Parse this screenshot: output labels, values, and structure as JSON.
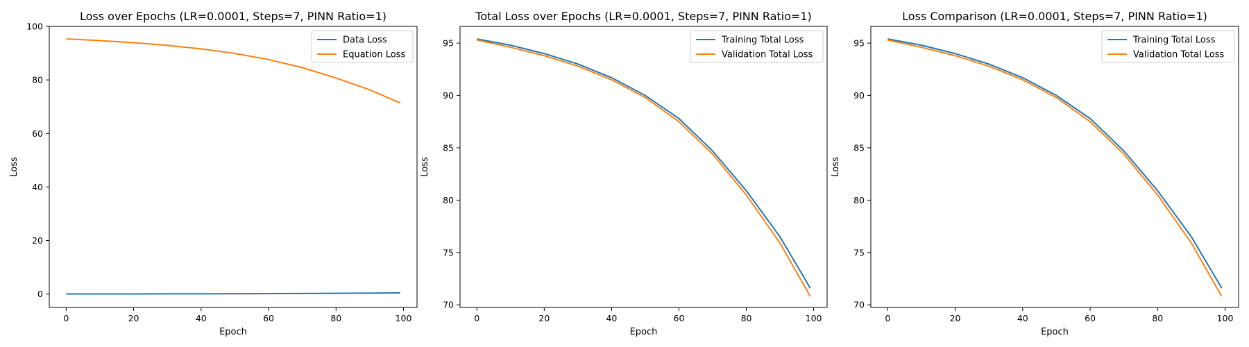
{
  "chart_data": [
    {
      "type": "line",
      "title": "Loss over Epochs (LR=0.0001, Steps=7, PINN Ratio=1)",
      "xlabel": "Epoch",
      "ylabel": "Loss",
      "xlim": [
        -5,
        104
      ],
      "ylim": [
        -5,
        100
      ],
      "xticks": [
        0,
        20,
        40,
        60,
        80,
        100
      ],
      "yticks": [
        0,
        20,
        40,
        60,
        80,
        100
      ],
      "grid": false,
      "legend": "top-right",
      "series": [
        {
          "name": "Data Loss",
          "color": "#1f77b4",
          "x": [
            0,
            10,
            20,
            30,
            40,
            50,
            60,
            70,
            80,
            90,
            99
          ],
          "values": [
            0.05,
            0.06,
            0.07,
            0.08,
            0.1,
            0.13,
            0.17,
            0.22,
            0.28,
            0.36,
            0.45
          ]
        },
        {
          "name": "Equation Loss",
          "color": "#ff7f0e",
          "x": [
            0,
            10,
            20,
            30,
            40,
            50,
            60,
            70,
            80,
            90,
            99
          ],
          "values": [
            95.3,
            94.7,
            93.9,
            92.9,
            91.6,
            89.9,
            87.6,
            84.6,
            80.7,
            76.3,
            71.4
          ]
        }
      ]
    },
    {
      "type": "line",
      "title": "Total Loss over Epochs (LR=0.0001, Steps=7, PINN Ratio=1)",
      "xlabel": "Epoch",
      "ylabel": "Loss",
      "xlim": [
        -5,
        104
      ],
      "ylim": [
        69.75,
        96.6
      ],
      "xticks": [
        0,
        20,
        40,
        60,
        80,
        100
      ],
      "yticks": [
        70,
        75,
        80,
        85,
        90,
        95
      ],
      "grid": false,
      "legend": "top-right",
      "series": [
        {
          "name": "Training Total Loss",
          "color": "#1f77b4",
          "x": [
            0,
            10,
            20,
            30,
            40,
            50,
            60,
            70,
            80,
            90,
            99
          ],
          "values": [
            95.4,
            94.8,
            94.0,
            93.0,
            91.7,
            90.0,
            87.8,
            84.7,
            80.9,
            76.5,
            71.6
          ]
        },
        {
          "name": "Validation Total Loss",
          "color": "#ff7f0e",
          "x": [
            0,
            10,
            20,
            30,
            40,
            50,
            60,
            70,
            80,
            90,
            99
          ],
          "values": [
            95.3,
            94.6,
            93.8,
            92.8,
            91.5,
            89.8,
            87.5,
            84.4,
            80.5,
            75.9,
            70.8
          ]
        }
      ]
    },
    {
      "type": "line",
      "title": "Loss Comparison (LR=0.0001, Steps=7, PINN Ratio=1)",
      "xlabel": "Epoch",
      "ylabel": "Loss",
      "xlim": [
        -5,
        104
      ],
      "ylim": [
        69.75,
        96.6
      ],
      "xticks": [
        0,
        20,
        40,
        60,
        80,
        100
      ],
      "yticks": [
        70,
        75,
        80,
        85,
        90,
        95
      ],
      "grid": false,
      "legend": "top-right",
      "series": [
        {
          "name": "Training Total Loss",
          "color": "#1f77b4",
          "x": [
            0,
            10,
            20,
            30,
            40,
            50,
            60,
            70,
            80,
            90,
            99
          ],
          "values": [
            95.4,
            94.8,
            94.0,
            93.0,
            91.7,
            90.0,
            87.8,
            84.7,
            80.9,
            76.5,
            71.6
          ]
        },
        {
          "name": "Validation Total Loss",
          "color": "#ff7f0e",
          "x": [
            0,
            10,
            20,
            30,
            40,
            50,
            60,
            70,
            80,
            90,
            99
          ],
          "values": [
            95.3,
            94.6,
            93.8,
            92.8,
            91.5,
            89.8,
            87.5,
            84.4,
            80.5,
            75.9,
            70.8
          ]
        }
      ]
    }
  ]
}
